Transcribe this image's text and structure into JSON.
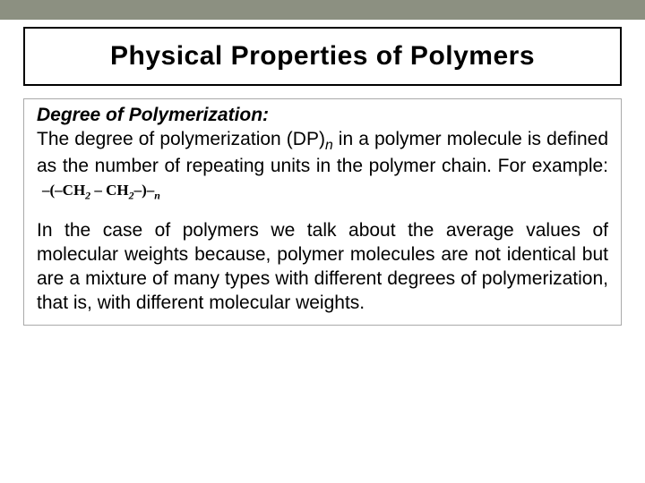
{
  "topbar_color": "#8c9081",
  "title": "Physical Properties of Polymers",
  "subheading": "Degree of Polymerization:",
  "para1_pre": "The degree of polymerization (DP)",
  "para1_sub": "n",
  "para1_post": " in a polymer molecule is defined as the number of repeating units in the polymer chain. For example:",
  "formula": {
    "left_tail": "–(–",
    "ch": "CH",
    "sub2a": "2",
    "dash1": " – ",
    "sub2b": "2",
    "right_tail": "–)–",
    "n": "n"
  },
  "para2": "In the case of polymers we talk about the average values of molecular weights because, polymer molecules are not identical but are a mixture of many types with different degrees of polymerization, that is, with different molecular weights.",
  "title_border_color": "#000000",
  "body_border_color": "#a9a9a9"
}
